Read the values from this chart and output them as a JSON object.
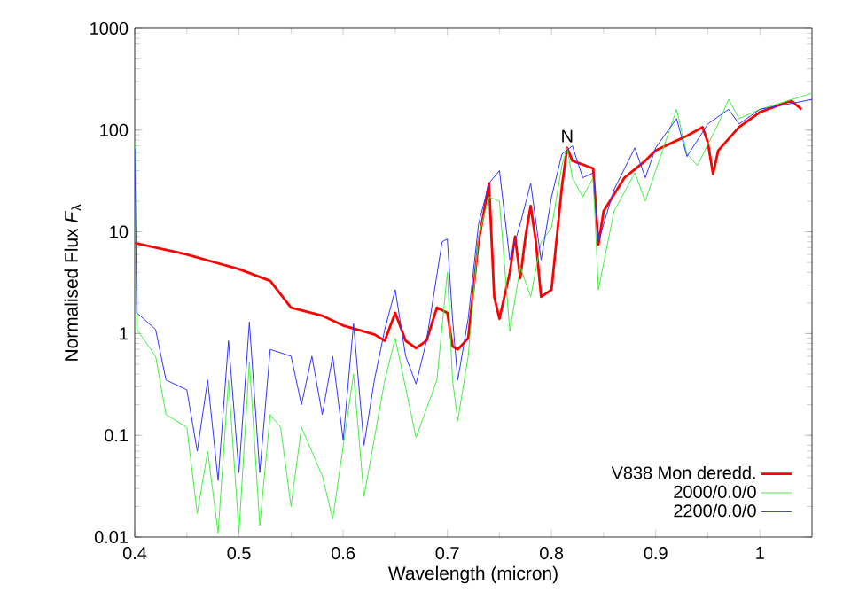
{
  "chart_data": {
    "type": "line",
    "xlabel": "Wavelength (micron)",
    "ylabel": "Normalised Flux *F*$_{λ}$",
    "log": "y",
    "xlim": [
      0.4,
      1.05
    ],
    "ylim": [
      0.01,
      1000
    ],
    "xticks": [
      0.4,
      0.5,
      0.6,
      0.7,
      0.8,
      0.9,
      1
    ],
    "yticks": [
      0.01,
      0.1,
      1,
      10,
      100,
      1000
    ],
    "legend": "bottom right",
    "grid": false,
    "annotations": [
      {
        "text": "N",
        "x": 0.815,
        "y": 67
      }
    ],
    "series": [
      {
        "name": "V838 Mon deredd.",
        "color": "#ff0000",
        "x": [
          0.4,
          0.45,
          0.5,
          0.53,
          0.55,
          0.58,
          0.6,
          0.63,
          0.64,
          0.65,
          0.66,
          0.67,
          0.68,
          0.69,
          0.7,
          0.705,
          0.71,
          0.72,
          0.73,
          0.74,
          0.745,
          0.75,
          0.76,
          0.765,
          0.77,
          0.775,
          0.78,
          0.785,
          0.79,
          0.8,
          0.81,
          0.815,
          0.82,
          0.84,
          0.845,
          0.85,
          0.87,
          0.89,
          0.9,
          0.93,
          0.945,
          0.95,
          0.955,
          0.96,
          0.98,
          1.0,
          1.03,
          1.04
        ],
        "values": [
          7.8,
          6,
          4.3,
          3.3,
          1.8,
          1.5,
          1.2,
          0.98,
          0.85,
          1.6,
          0.85,
          0.72,
          0.85,
          1.8,
          1.6,
          0.75,
          0.7,
          0.9,
          8,
          30,
          2.3,
          1.4,
          4,
          9,
          3.5,
          9,
          18,
          8,
          2.3,
          2.7,
          28,
          67,
          50,
          42,
          7.5,
          16,
          34,
          50,
          63,
          88,
          107,
          76,
          37,
          63,
          107,
          150,
          195,
          160
        ]
      },
      {
        "name": "2000/0.0/0",
        "color": "#44ee44",
        "x": [
          0.4,
          0.402,
          0.42,
          0.43,
          0.45,
          0.46,
          0.47,
          0.48,
          0.49,
          0.5,
          0.51,
          0.52,
          0.53,
          0.54,
          0.55,
          0.56,
          0.58,
          0.59,
          0.61,
          0.62,
          0.64,
          0.65,
          0.67,
          0.69,
          0.7,
          0.705,
          0.71,
          0.72,
          0.73,
          0.74,
          0.75,
          0.76,
          0.77,
          0.78,
          0.79,
          0.8,
          0.81,
          0.815,
          0.82,
          0.83,
          0.84,
          0.845,
          0.86,
          0.88,
          0.89,
          0.92,
          0.93,
          0.94,
          0.96,
          0.97,
          0.98,
          1.0,
          1.05
        ],
        "values": [
          75,
          1.1,
          0.6,
          0.16,
          0.12,
          0.017,
          0.07,
          0.011,
          0.35,
          0.011,
          0.53,
          0.013,
          0.16,
          0.12,
          0.02,
          0.12,
          0.04,
          0.015,
          0.4,
          0.025,
          0.35,
          0.9,
          0.095,
          0.35,
          4,
          0.35,
          0.14,
          0.6,
          9,
          22,
          20,
          1.05,
          4.5,
          2.3,
          8,
          11,
          45,
          67,
          34,
          22,
          34,
          2.7,
          16,
          38,
          20,
          160,
          58,
          45,
          115,
          200,
          130,
          160,
          230
        ]
      },
      {
        "name": "2200/0.0/0",
        "color": "#3333ff",
        "x": [
          0.4,
          0.402,
          0.42,
          0.43,
          0.45,
          0.46,
          0.47,
          0.48,
          0.49,
          0.5,
          0.51,
          0.52,
          0.53,
          0.55,
          0.56,
          0.57,
          0.58,
          0.59,
          0.6,
          0.61,
          0.62,
          0.63,
          0.64,
          0.65,
          0.66,
          0.67,
          0.68,
          0.695,
          0.7,
          0.705,
          0.71,
          0.72,
          0.73,
          0.74,
          0.75,
          0.76,
          0.77,
          0.78,
          0.79,
          0.8,
          0.81,
          0.82,
          0.83,
          0.84,
          0.845,
          0.86,
          0.88,
          0.89,
          0.9,
          0.92,
          0.93,
          0.95,
          0.97,
          0.98,
          1.0,
          1.05
        ],
        "values": [
          66,
          1.6,
          1.1,
          0.35,
          0.28,
          0.07,
          0.35,
          0.036,
          0.85,
          0.043,
          1.3,
          0.043,
          0.7,
          0.6,
          0.2,
          0.6,
          0.16,
          0.6,
          0.09,
          1.25,
          0.08,
          0.35,
          1.1,
          2.7,
          0.6,
          0.32,
          0.85,
          8,
          8.5,
          1.4,
          0.35,
          1.4,
          12,
          30,
          40,
          5.3,
          12,
          30,
          5.3,
          22,
          58,
          70,
          34,
          38,
          8,
          26,
          67,
          34,
          67,
          130,
          55,
          115,
          160,
          115,
          160,
          200
        ]
      }
    ]
  }
}
